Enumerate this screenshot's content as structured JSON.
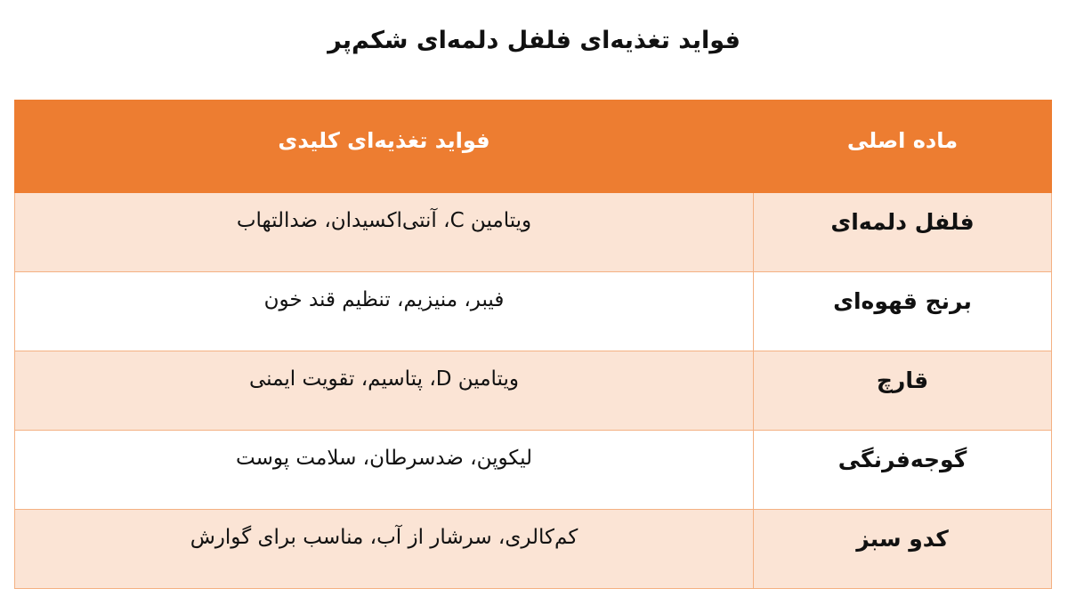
{
  "title": "فواید تغذیه‌ای فلفل دلمه‌ای شکم‌پر",
  "table": {
    "headers": [
      "ماده اصلی",
      "فواید تغذیه‌ای کلیدی"
    ],
    "rows": [
      {
        "ingredient": "فلفل دلمه‌ای",
        "benefits": "ویتامین C، آنتی‌اکسیدان، ضدالتهاب"
      },
      {
        "ingredient": "برنج قهوه‌ای",
        "benefits": "فیبر، منیزیم، تنظیم قند خون"
      },
      {
        "ingredient": "قارچ",
        "benefits": "ویتامین D، پتاسیم، تقویت ایمنی"
      },
      {
        "ingredient": "گوجه‌فرنگی",
        "benefits": "لیکوپن، ضدسرطان، سلامت پوست"
      },
      {
        "ingredient": "کدو سبز",
        "benefits": "کم‌کالری، سرشار از آب، مناسب برای گوارش"
      }
    ]
  },
  "colors": {
    "header": "#ED7D31",
    "row_alt": "#FBE4D5",
    "border": "#F4B183"
  }
}
